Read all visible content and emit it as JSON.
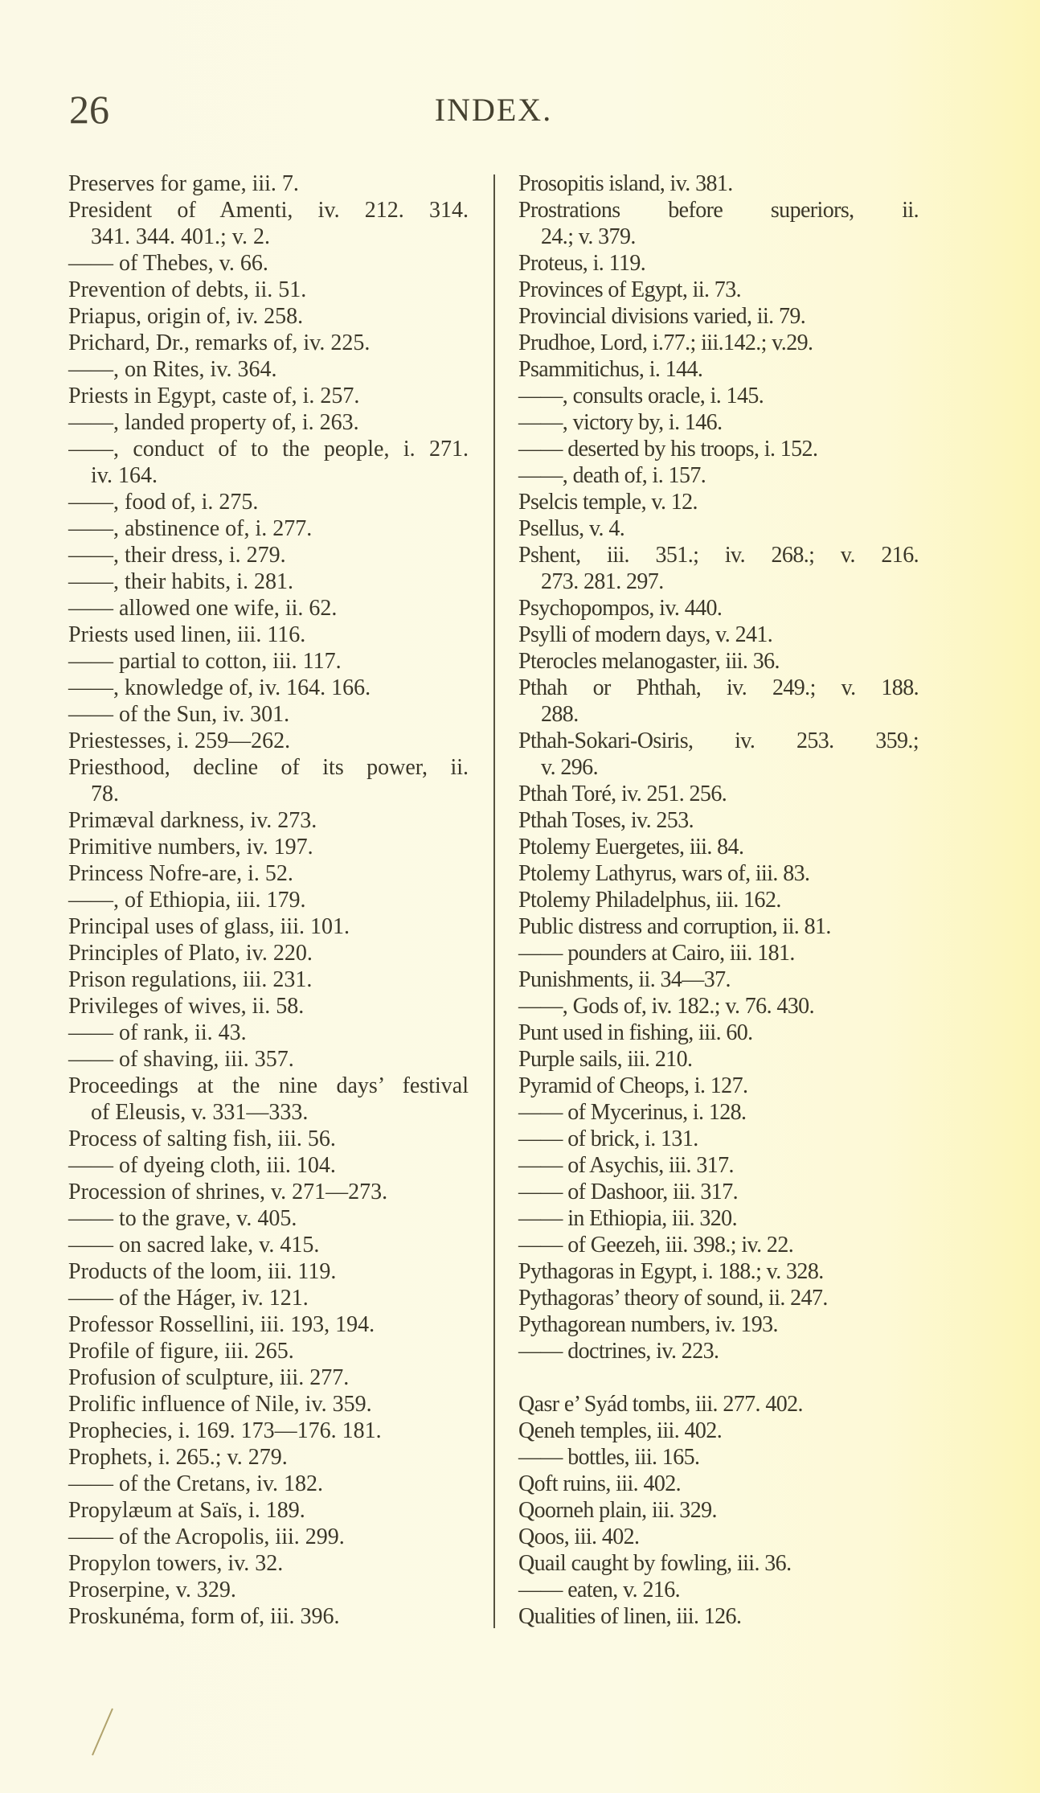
{
  "header": {
    "page_number": "26",
    "running_title": "INDEX."
  },
  "left_column": [
    {
      "text": "Preserves for game, iii. 7."
    },
    {
      "text": "President of Amenti, iv. 212. 314."
    },
    {
      "text": "341. 344. 401.; v. 2.",
      "cont": true
    },
    {
      "text": "—— of Thebes, v. 66."
    },
    {
      "text": "Prevention of debts, ii. 51."
    },
    {
      "text": "Priapus, origin of, iv. 258."
    },
    {
      "text": "Prichard, Dr., remarks of, iv. 225."
    },
    {
      "text": "——, on Rites, iv. 364."
    },
    {
      "text": "Priests in Egypt, caste of, i. 257."
    },
    {
      "text": "——, landed property of, i. 263."
    },
    {
      "text": "——, conduct of to the people, i. 271."
    },
    {
      "text": "iv. 164.",
      "cont": true
    },
    {
      "text": "——, food of, i. 275."
    },
    {
      "text": "——, abstinence of, i. 277."
    },
    {
      "text": "——, their dress, i. 279."
    },
    {
      "text": "——, their habits, i. 281."
    },
    {
      "text": "—— allowed one wife, ii. 62."
    },
    {
      "text": "Priests used linen, iii. 116."
    },
    {
      "text": "—— partial to cotton, iii. 117."
    },
    {
      "text": "——, knowledge of, iv. 164. 166."
    },
    {
      "text": "—— of the Sun, iv. 301."
    },
    {
      "text": "Priestesses, i. 259—262."
    },
    {
      "text": "Priesthood, decline of its power, ii."
    },
    {
      "text": "78.",
      "cont": true
    },
    {
      "text": "Primæval darkness, iv. 273."
    },
    {
      "text": "Primitive numbers, iv. 197."
    },
    {
      "text": "Princess Nofre-are, i. 52."
    },
    {
      "text": "——, of Ethiopia, iii. 179."
    },
    {
      "text": "Principal uses of glass, iii. 101."
    },
    {
      "text": "Principles of Plato, iv. 220."
    },
    {
      "text": "Prison regulations, iii. 231."
    },
    {
      "text": "Privileges of wives, ii. 58."
    },
    {
      "text": "—— of rank, ii. 43."
    },
    {
      "text": "—— of shaving, iii. 357."
    },
    {
      "text": "Proceedings at the nine days’ festival"
    },
    {
      "text": "of Eleusis, v. 331—333.",
      "cont": true
    },
    {
      "text": "Process of salting fish, iii. 56."
    },
    {
      "text": "—— of dyeing cloth, iii. 104."
    },
    {
      "text": "Procession of shrines, v. 271—273."
    },
    {
      "text": "—— to the grave, v. 405."
    },
    {
      "text": "—— on sacred lake, v. 415."
    },
    {
      "text": "Products of the loom, iii. 119."
    },
    {
      "text": "—— of the Háger, iv. 121."
    },
    {
      "text": "Professor Rossellini, iii. 193, 194."
    },
    {
      "text": "Profile of figure, iii. 265."
    },
    {
      "text": "Profusion of sculpture, iii. 277."
    },
    {
      "text": "Prolific influence of Nile, iv. 359."
    },
    {
      "text": "Prophecies, i. 169. 173—176. 181."
    },
    {
      "text": "Prophets, i. 265.; v. 279."
    },
    {
      "text": "—— of the Cretans, iv. 182."
    },
    {
      "text": "Propylæum at Saïs, i. 189."
    },
    {
      "text": "—— of the Acropolis, iii. 299."
    },
    {
      "text": "Propylon towers, iv. 32."
    },
    {
      "text": "Proserpine, v. 329."
    },
    {
      "text": "Proskunéma, form of, iii. 396."
    }
  ],
  "right_column": [
    {
      "text": "Prosopitis island, iv. 381."
    },
    {
      "text": "Prostrations before superiors, ii."
    },
    {
      "text": "24.; v. 379.",
      "cont": true
    },
    {
      "text": "Proteus, i. 119."
    },
    {
      "text": "Provinces of Egypt, ii. 73."
    },
    {
      "text": "Provincial divisions varied, ii. 79."
    },
    {
      "text": "Prudhoe, Lord, i.77.; iii.142.; v.29."
    },
    {
      "text": "Psammitichus, i. 144."
    },
    {
      "text": "——, consults oracle, i. 145."
    },
    {
      "text": "——, victory by, i. 146."
    },
    {
      "text": "—— deserted by his troops, i. 152."
    },
    {
      "text": "——, death of, i. 157."
    },
    {
      "text": "Pselcis temple, v. 12."
    },
    {
      "text": "Psellus, v. 4."
    },
    {
      "text": "Pshent, iii. 351.; iv. 268.; v. 216."
    },
    {
      "text": "273. 281. 297.",
      "cont": true
    },
    {
      "text": "Psychopompos, iv. 440."
    },
    {
      "text": "Psylli of modern days, v. 241."
    },
    {
      "text": "Pterocles melanogaster, iii. 36."
    },
    {
      "text": "Pthah or Phthah, iv. 249.; v. 188."
    },
    {
      "text": "288.",
      "cont": true
    },
    {
      "text": "Pthah-Sokari-Osiris, iv. 253. 359.;"
    },
    {
      "text": "v. 296.",
      "cont": true
    },
    {
      "text": "Pthah Toré, iv. 251. 256."
    },
    {
      "text": "Pthah Toses, iv. 253."
    },
    {
      "text": "Ptolemy Euergetes, iii. 84."
    },
    {
      "text": "Ptolemy Lathyrus, wars of, iii. 83."
    },
    {
      "text": "Ptolemy Philadelphus, iii. 162."
    },
    {
      "text": "Public distress and corruption, ii. 81."
    },
    {
      "text": "—— pounders at Cairo, iii. 181."
    },
    {
      "text": "Punishments, ii. 34—37."
    },
    {
      "text": "——, Gods of, iv. 182.; v. 76. 430."
    },
    {
      "text": "Punt used in fishing, iii. 60."
    },
    {
      "text": "Purple sails, iii. 210."
    },
    {
      "text": "Pyramid of Cheops, i. 127."
    },
    {
      "text": "—— of Mycerinus, i. 128."
    },
    {
      "text": "—— of brick, i. 131."
    },
    {
      "text": "—— of Asychis, iii. 317."
    },
    {
      "text": "—— of Dashoor, iii. 317."
    },
    {
      "text": "—— in Ethiopia, iii. 320."
    },
    {
      "text": "—— of Geezeh, iii. 398.; iv. 22."
    },
    {
      "text": "Pythagoras in Egypt, i. 188.; v. 328."
    },
    {
      "text": "Pythagoras’ theory of sound, ii. 247."
    },
    {
      "text": "Pythagorean numbers, iv. 193."
    },
    {
      "text": "—— doctrines, iv. 223."
    },
    {
      "text": ""
    },
    {
      "text": "Qasr e’ Syád tombs, iii. 277. 402."
    },
    {
      "text": "Qeneh temples, iii. 402."
    },
    {
      "text": "—— bottles, iii. 165."
    },
    {
      "text": "Qoft ruins, iii. 402."
    },
    {
      "text": "Qoorneh plain, iii. 329."
    },
    {
      "text": "Qoos, iii. 402."
    },
    {
      "text": "Quail caught by fowling, iii. 36."
    },
    {
      "text": "—— eaten, v. 216."
    },
    {
      "text": "Qualities of linen, iii. 126."
    }
  ],
  "colors": {
    "paper": "#fbf9e6",
    "ink": "#3b3729",
    "pencil_mark": "#b0a26c"
  }
}
